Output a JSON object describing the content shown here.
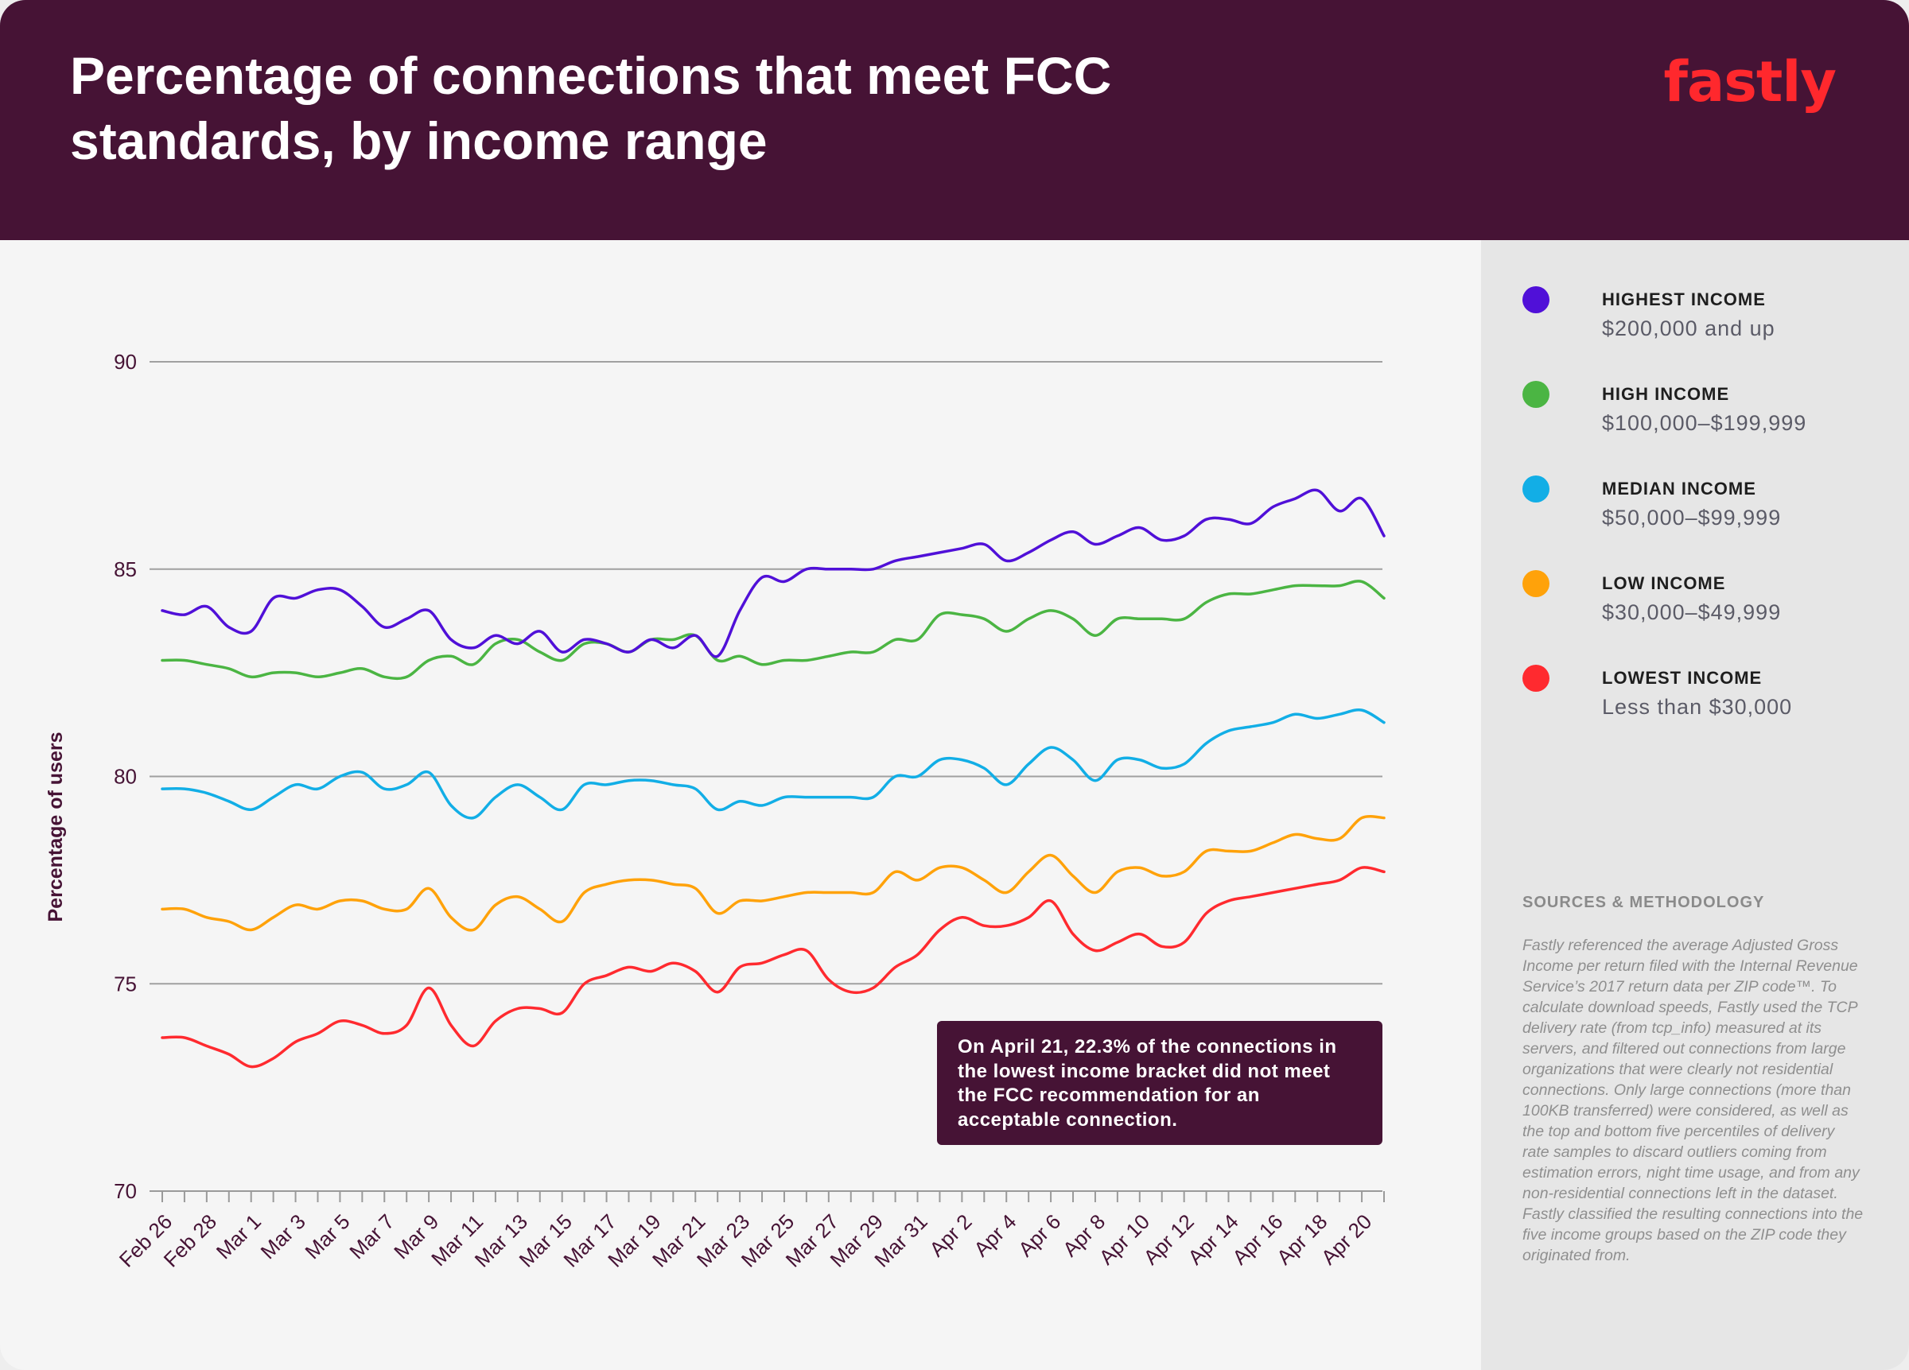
{
  "header": {
    "title": "Percentage of connections that meet FCC standards, by income range",
    "logo": "fastly"
  },
  "legend": [
    {
      "name": "HIGHEST INCOME",
      "range": "$200,000 and up",
      "color": "#5010d8"
    },
    {
      "name": "HIGH INCOME",
      "range": "$100,000–$199,999",
      "color": "#4bb543"
    },
    {
      "name": "MEDIAN INCOME",
      "range": "$50,000–$99,999",
      "color": "#12aee6"
    },
    {
      "name": "LOW INCOME",
      "range": "$30,000–$49,999",
      "color": "#ffa20a"
    },
    {
      "name": "LOWEST INCOME",
      "range": "Less than $30,000",
      "color": "#ff2a2f"
    }
  ],
  "sources": {
    "title": "SOURCES & METHODOLOGY",
    "text": "Fastly referenced the average Adjusted Gross Income per return filed with the Internal Revenue Service’s 2017 return data per ZIP code™. To calculate download speeds, Fastly used the TCP delivery rate (from tcp_info) measured at its servers, and filtered out connections from large organizations that were clearly not residential connections. Only large connections (more than 100KB transferred) were considered, as well as the top and bottom five percentiles of delivery rate samples to discard outliers coming from estimation errors, night time usage, and from any non-residential connections left in the dataset. Fastly classified the resulting connections into the five income groups based on the ZIP code they originated from."
  },
  "callout": {
    "text": "On April 21, 22.3% of the connections in the lowest income bracket did not meet the FCC recommendation for an acceptable connection."
  },
  "chart_data": {
    "type": "line",
    "title": "Percentage of connections that meet FCC standards, by income range",
    "ylabel": "Percentage of users",
    "xlabel": "",
    "ylim": [
      70,
      90
    ],
    "yticks": [
      70,
      75,
      80,
      85,
      90
    ],
    "grid": true,
    "legend_position": "right",
    "x_tick_labels": [
      "Feb 26",
      "Feb 28",
      "Mar 1",
      "Mar 3",
      "Mar 5",
      "Mar 7",
      "Mar 9",
      "Mar 11",
      "Mar 13",
      "Mar 15",
      "Mar 17",
      "Mar 19",
      "Mar 21",
      "Mar 23",
      "Mar 25",
      "Mar 27",
      "Mar 29",
      "Mar 31",
      "Apr 2",
      "Apr 4",
      "Apr 6",
      "Apr 8",
      "Apr 10",
      "Apr 12",
      "Apr 14",
      "Apr 16",
      "Apr 18",
      "Apr 20"
    ],
    "x": [
      "Feb 26",
      "Feb 27",
      "Feb 28",
      "Feb 29",
      "Mar 1",
      "Mar 2",
      "Mar 3",
      "Mar 4",
      "Mar 5",
      "Mar 6",
      "Mar 7",
      "Mar 8",
      "Mar 9",
      "Mar 10",
      "Mar 11",
      "Mar 12",
      "Mar 13",
      "Mar 14",
      "Mar 15",
      "Mar 16",
      "Mar 17",
      "Mar 18",
      "Mar 19",
      "Mar 20",
      "Mar 21",
      "Mar 22",
      "Mar 23",
      "Mar 24",
      "Mar 25",
      "Mar 26",
      "Mar 27",
      "Mar 28",
      "Mar 29",
      "Mar 30",
      "Mar 31",
      "Apr 1",
      "Apr 2",
      "Apr 3",
      "Apr 4",
      "Apr 5",
      "Apr 6",
      "Apr 7",
      "Apr 8",
      "Apr 9",
      "Apr 10",
      "Apr 11",
      "Apr 12",
      "Apr 13",
      "Apr 14",
      "Apr 15",
      "Apr 16",
      "Apr 17",
      "Apr 18",
      "Apr 19",
      "Apr 20",
      "Apr 21"
    ],
    "series": [
      {
        "name": "HIGHEST INCOME",
        "color": "#5010d8",
        "values": [
          84.0,
          83.9,
          84.1,
          83.6,
          83.5,
          84.3,
          84.3,
          84.5,
          84.5,
          84.1,
          83.6,
          83.8,
          84.0,
          83.3,
          83.1,
          83.4,
          83.2,
          83.5,
          83.0,
          83.3,
          83.2,
          83.0,
          83.3,
          83.1,
          83.4,
          82.9,
          84.0,
          84.8,
          84.7,
          85.0,
          85.0,
          85.0,
          85.0,
          85.2,
          85.3,
          85.4,
          85.5,
          85.6,
          85.2,
          85.4,
          85.7,
          85.9,
          85.6,
          85.8,
          86.0,
          85.7,
          85.8,
          86.2,
          86.2,
          86.1,
          86.5,
          86.7,
          86.9,
          86.4,
          86.7,
          85.8
        ]
      },
      {
        "name": "HIGH INCOME",
        "color": "#4bb543",
        "values": [
          82.8,
          82.8,
          82.7,
          82.6,
          82.4,
          82.5,
          82.5,
          82.4,
          82.5,
          82.6,
          82.4,
          82.4,
          82.8,
          82.9,
          82.7,
          83.2,
          83.3,
          83.0,
          82.8,
          83.2,
          83.2,
          83.0,
          83.3,
          83.3,
          83.4,
          82.8,
          82.9,
          82.7,
          82.8,
          82.8,
          82.9,
          83.0,
          83.0,
          83.3,
          83.3,
          83.9,
          83.9,
          83.8,
          83.5,
          83.8,
          84.0,
          83.8,
          83.4,
          83.8,
          83.8,
          83.8,
          83.8,
          84.2,
          84.4,
          84.4,
          84.5,
          84.6,
          84.6,
          84.6,
          84.7,
          84.3
        ]
      },
      {
        "name": "MEDIAN INCOME",
        "color": "#12aee6",
        "values": [
          79.7,
          79.7,
          79.6,
          79.4,
          79.2,
          79.5,
          79.8,
          79.7,
          80.0,
          80.1,
          79.7,
          79.8,
          80.1,
          79.3,
          79.0,
          79.5,
          79.8,
          79.5,
          79.2,
          79.8,
          79.8,
          79.9,
          79.9,
          79.8,
          79.7,
          79.2,
          79.4,
          79.3,
          79.5,
          79.5,
          79.5,
          79.5,
          79.5,
          80.0,
          80.0,
          80.4,
          80.4,
          80.2,
          79.8,
          80.3,
          80.7,
          80.4,
          79.9,
          80.4,
          80.4,
          80.2,
          80.3,
          80.8,
          81.1,
          81.2,
          81.3,
          81.5,
          81.4,
          81.5,
          81.6,
          81.3
        ]
      },
      {
        "name": "LOW INCOME",
        "color": "#ffa20a",
        "values": [
          76.8,
          76.8,
          76.6,
          76.5,
          76.3,
          76.6,
          76.9,
          76.8,
          77.0,
          77.0,
          76.8,
          76.8,
          77.3,
          76.6,
          76.3,
          76.9,
          77.1,
          76.8,
          76.5,
          77.2,
          77.4,
          77.5,
          77.5,
          77.4,
          77.3,
          76.7,
          77.0,
          77.0,
          77.1,
          77.2,
          77.2,
          77.2,
          77.2,
          77.7,
          77.5,
          77.8,
          77.8,
          77.5,
          77.2,
          77.7,
          78.1,
          77.6,
          77.2,
          77.7,
          77.8,
          77.6,
          77.7,
          78.2,
          78.2,
          78.2,
          78.4,
          78.6,
          78.5,
          78.5,
          79.0,
          79.0
        ]
      },
      {
        "name": "LOWEST INCOME",
        "color": "#ff2a2f",
        "values": [
          73.7,
          73.7,
          73.5,
          73.3,
          73.0,
          73.2,
          73.6,
          73.8,
          74.1,
          74.0,
          73.8,
          74.0,
          74.9,
          74.0,
          73.5,
          74.1,
          74.4,
          74.4,
          74.3,
          75.0,
          75.2,
          75.4,
          75.3,
          75.5,
          75.3,
          74.8,
          75.4,
          75.5,
          75.7,
          75.8,
          75.1,
          74.8,
          74.9,
          75.4,
          75.7,
          76.3,
          76.6,
          76.4,
          76.4,
          76.6,
          77.0,
          76.2,
          75.8,
          76.0,
          76.2,
          75.9,
          76.0,
          76.7,
          77.0,
          77.1,
          77.2,
          77.3,
          77.4,
          77.5,
          77.8,
          77.7
        ]
      }
    ]
  }
}
